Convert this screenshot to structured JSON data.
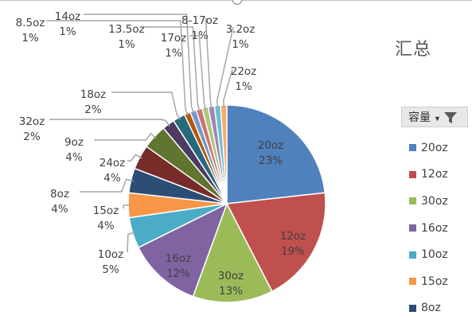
{
  "chart_data": {
    "type": "pie",
    "title": "汇总",
    "legend_header": "容量",
    "legend_position": "right",
    "categories": [
      "20oz",
      "12oz",
      "30oz",
      "16oz",
      "10oz",
      "15oz",
      "8oz",
      "24oz",
      "9oz",
      "32oz",
      "18oz",
      "8.5oz",
      "14oz",
      "13.5oz",
      "17oz",
      "8-17oz",
      "3.2oz",
      "22oz"
    ],
    "values": [
      23,
      19,
      13,
      12,
      5,
      4,
      4,
      4,
      4,
      2,
      2,
      1,
      1,
      1,
      1,
      1,
      1,
      1
    ],
    "labels": [
      "23%",
      "19%",
      "13%",
      "12%",
      "5%",
      "4%",
      "4%",
      "4%",
      "4%",
      "2%",
      "2%",
      "1%",
      "1%",
      "1%",
      "1%",
      "1%",
      "1%",
      "1%"
    ],
    "colors": [
      "#4f81bd",
      "#c0504d",
      "#9bbb59",
      "#8064a2",
      "#4bacc6",
      "#f79646",
      "#2c4d75",
      "#772c2a",
      "#5f7530",
      "#4d3b62",
      "#276a7c",
      "#b65708",
      "#729aca",
      "#cd7371",
      "#afc97a",
      "#9c87b6",
      "#6fbdd1",
      "#f9ab6b"
    ],
    "legend_visible": [
      "20oz",
      "12oz",
      "30oz",
      "16oz",
      "10oz",
      "15oz",
      "8oz"
    ]
  }
}
